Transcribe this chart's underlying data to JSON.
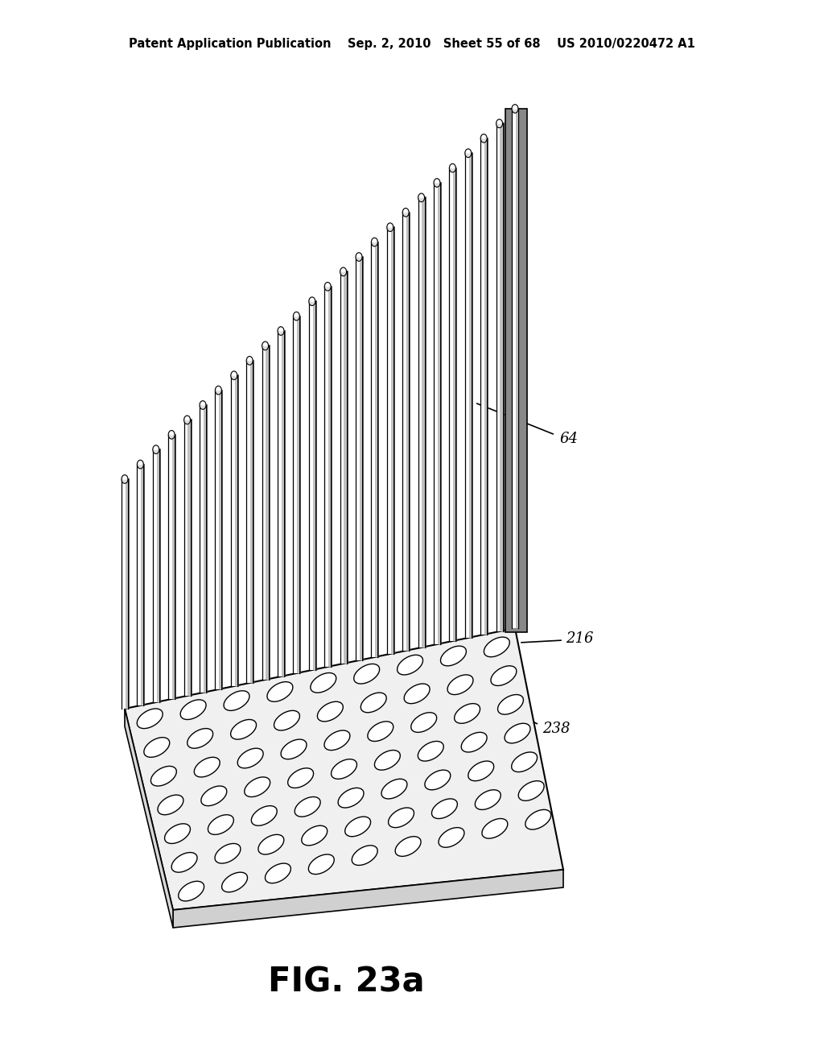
{
  "bg_color": "#ffffff",
  "line_color": "#000000",
  "header_text": "Patent Application Publication    Sep. 2, 2010   Sheet 55 of 68    US 2010/0220472 A1",
  "figure_label": "FIG. 23a",
  "label_64": "64",
  "label_216": "216",
  "label_238": "238",
  "header_font_size": 10.5,
  "figure_label_font_size": 30,
  "annotation_font_size": 13,
  "num_fins": 26,
  "hole_rows": 7,
  "hole_cols": 9
}
